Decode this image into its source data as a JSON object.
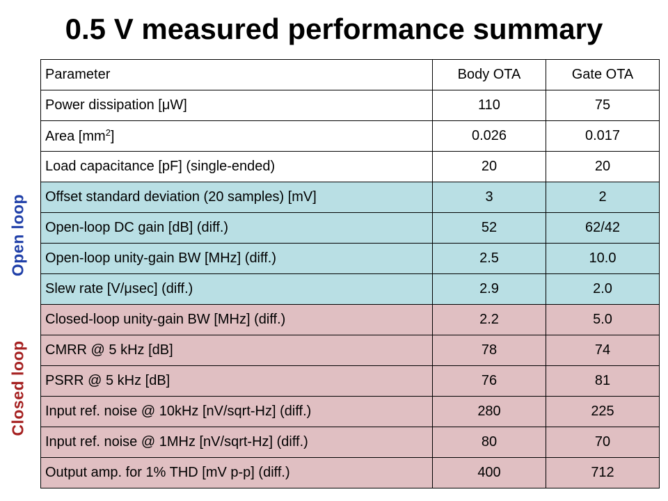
{
  "title": "0.5 V measured performance summary",
  "colors": {
    "open_loop_row_bg": "#b9dfe4",
    "closed_loop_row_bg": "#e0bfc2",
    "open_loop_label": "#1f3fa8",
    "closed_loop_label": "#a52020"
  },
  "side_labels": {
    "open": "Open loop",
    "closed": "Closed loop"
  },
  "table": {
    "header": {
      "parameter": "Parameter",
      "body": "Body OTA",
      "gate": "Gate OTA"
    },
    "rows": [
      {
        "group": "none",
        "parameter": "Power dissipation [μW]",
        "body": "110",
        "gate": "75"
      },
      {
        "group": "none",
        "parameter_pre": "Area [mm",
        "parameter_sup": "2",
        "parameter_post": "]",
        "body": "0.026",
        "gate": "0.017"
      },
      {
        "group": "none",
        "parameter": "Load capacitance [pF] (single-ended)",
        "body": "20",
        "gate": "20"
      },
      {
        "group": "open",
        "parameter": "Offset standard deviation (20 samples) [mV]",
        "body": "3",
        "gate": "2"
      },
      {
        "group": "open",
        "parameter": "Open-loop DC gain [dB] (diff.)",
        "body": "52",
        "gate": "62/42"
      },
      {
        "group": "open",
        "parameter": "Open-loop unity-gain BW [MHz] (diff.)",
        "body": "2.5",
        "gate": "10.0"
      },
      {
        "group": "open",
        "parameter": "Slew rate [V/μsec] (diff.)",
        "body": "2.9",
        "gate": "2.0"
      },
      {
        "group": "closed",
        "parameter": "Closed-loop unity-gain BW [MHz] (diff.)",
        "body": "2.2",
        "gate": "5.0"
      },
      {
        "group": "closed",
        "parameter": "CMRR @ 5 kHz [dB]",
        "body": "78",
        "gate": "74"
      },
      {
        "group": "closed",
        "parameter": "PSRR @ 5 kHz [dB]",
        "body": "76",
        "gate": "81"
      },
      {
        "group": "closed",
        "parameter": "Input ref. noise @ 10kHz [nV/sqrt-Hz] (diff.)",
        "body": "280",
        "gate": "225"
      },
      {
        "group": "closed",
        "parameter": "Input ref. noise @ 1MHz [nV/sqrt-Hz] (diff.)",
        "body": "80",
        "gate": "70"
      },
      {
        "group": "closed",
        "parameter": "Output amp. for 1% THD [mV p-p] (diff.)",
        "body": "400",
        "gate": "712"
      }
    ]
  }
}
